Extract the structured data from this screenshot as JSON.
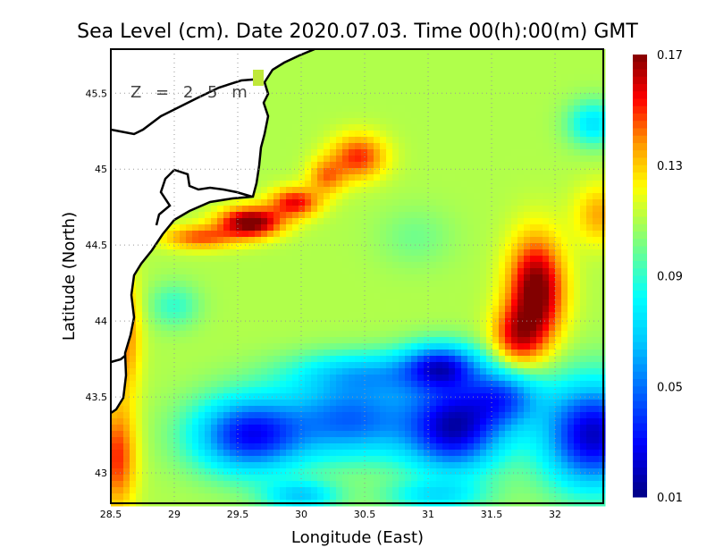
{
  "chart_data": {
    "type": "heatmap",
    "title": "Sea Level (cm). Date 2020.07.03. Time 00(h):00(m) GMT",
    "annotation": "Z = 2.5 m",
    "xlabel": "Longitude (East)",
    "ylabel": "Latitude (North)",
    "xlim": [
      28.5,
      32.38
    ],
    "ylim": [
      42.8,
      45.79
    ],
    "xticks": [
      "28.5",
      "29",
      "29.5",
      "30",
      "30.5",
      "31",
      "31.5",
      "32"
    ],
    "xtick_values": [
      28.5,
      29,
      29.5,
      30,
      30.5,
      31,
      31.5,
      32
    ],
    "yticks": [
      "43",
      "43.5",
      "44",
      "44.5",
      "45",
      "45.5"
    ],
    "ytick_values": [
      43,
      43.5,
      44,
      44.5,
      45,
      45.5
    ],
    "grid": true,
    "colorbar": {
      "min": 0.01,
      "max": 0.17,
      "labels": [
        "0.17",
        "0.13",
        "0.09",
        "0.05",
        "0.01"
      ],
      "label_values": [
        0.17,
        0.13,
        0.09,
        0.05,
        0.01
      ]
    },
    "field_base": 0.11,
    "features": [
      {
        "lon": 29.6,
        "lat": 44.65,
        "value": 0.175,
        "rx": 0.25,
        "ry": 0.1
      },
      {
        "lon": 29.95,
        "lat": 44.78,
        "value": 0.155,
        "rx": 0.2,
        "ry": 0.1
      },
      {
        "lon": 29.2,
        "lat": 44.55,
        "value": 0.145,
        "rx": 0.3,
        "ry": 0.08
      },
      {
        "lon": 30.45,
        "lat": 45.08,
        "value": 0.15,
        "rx": 0.22,
        "ry": 0.15
      },
      {
        "lon": 30.2,
        "lat": 44.95,
        "value": 0.14,
        "rx": 0.15,
        "ry": 0.12
      },
      {
        "lon": 31.85,
        "lat": 44.2,
        "value": 0.175,
        "rx": 0.22,
        "ry": 0.35
      },
      {
        "lon": 31.7,
        "lat": 43.9,
        "value": 0.15,
        "rx": 0.2,
        "ry": 0.2
      },
      {
        "lon": 32.35,
        "lat": 44.7,
        "value": 0.135,
        "rx": 0.2,
        "ry": 0.2
      },
      {
        "lon": 32.3,
        "lat": 45.3,
        "value": 0.075,
        "rx": 0.2,
        "ry": 0.15
      },
      {
        "lon": 28.62,
        "lat": 43.9,
        "value": 0.14,
        "rx": 0.12,
        "ry": 0.4
      },
      {
        "lon": 28.55,
        "lat": 43.1,
        "value": 0.15,
        "rx": 0.15,
        "ry": 0.35
      },
      {
        "lon": 29.6,
        "lat": 43.25,
        "value": 0.03,
        "rx": 0.45,
        "ry": 0.25
      },
      {
        "lon": 30.4,
        "lat": 43.35,
        "value": 0.05,
        "rx": 0.5,
        "ry": 0.25
      },
      {
        "lon": 31.2,
        "lat": 43.3,
        "value": 0.02,
        "rx": 0.4,
        "ry": 0.3
      },
      {
        "lon": 31.1,
        "lat": 43.7,
        "value": 0.04,
        "rx": 0.3,
        "ry": 0.15
      },
      {
        "lon": 32.3,
        "lat": 43.25,
        "value": 0.02,
        "rx": 0.4,
        "ry": 0.35
      },
      {
        "lon": 31.6,
        "lat": 43.5,
        "value": 0.055,
        "rx": 0.3,
        "ry": 0.2
      },
      {
        "lon": 31.05,
        "lat": 42.85,
        "value": 0.08,
        "rx": 0.4,
        "ry": 0.1
      },
      {
        "lon": 30.0,
        "lat": 42.85,
        "value": 0.07,
        "rx": 0.3,
        "ry": 0.1
      },
      {
        "lon": 30.5,
        "lat": 43.65,
        "value": 0.07,
        "rx": 0.6,
        "ry": 0.15
      },
      {
        "lon": 29.0,
        "lat": 44.1,
        "value": 0.09,
        "rx": 0.2,
        "ry": 0.15
      },
      {
        "lon": 30.9,
        "lat": 44.55,
        "value": 0.1,
        "rx": 0.3,
        "ry": 0.2
      }
    ]
  }
}
